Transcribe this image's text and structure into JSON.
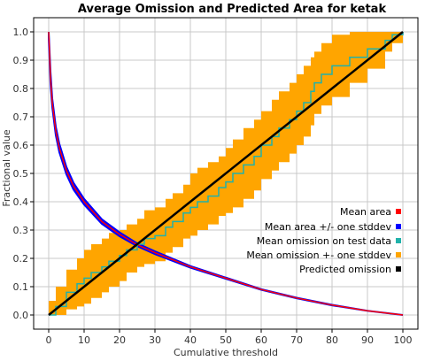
{
  "chart_data": {
    "type": "line",
    "title": "Average Omission and Predicted Area for ketak",
    "xlabel": "Cumulative threshold",
    "ylabel": "Fractional value",
    "xlim": [
      0,
      100
    ],
    "ylim": [
      0,
      1
    ],
    "x_ticks": [
      0,
      10,
      20,
      30,
      40,
      50,
      60,
      70,
      80,
      90,
      100
    ],
    "y_ticks": [
      0.0,
      0.1,
      0.2,
      0.3,
      0.4,
      0.5,
      0.6,
      0.7,
      0.8,
      0.9,
      1.0
    ],
    "x_tick_labels": [
      "0",
      "10",
      "20",
      "30",
      "40",
      "50",
      "60",
      "70",
      "80",
      "90",
      "100"
    ],
    "y_tick_labels": [
      "0.0",
      "0.1",
      "0.2",
      "0.3",
      "0.4",
      "0.5",
      "0.6",
      "0.7",
      "0.8",
      "0.9",
      "1.0"
    ],
    "grid": true,
    "legend_position": "bottom-right",
    "series": [
      {
        "name": "Mean area",
        "color": "#ff0000",
        "kind": "line",
        "x": [
          0,
          0.5,
          1,
          2,
          3,
          5,
          7,
          10,
          15,
          20,
          25,
          30,
          40,
          50,
          60,
          70,
          80,
          90,
          100
        ],
        "values": [
          1.0,
          0.84,
          0.75,
          0.65,
          0.59,
          0.51,
          0.455,
          0.4,
          0.33,
          0.285,
          0.248,
          0.22,
          0.17,
          0.13,
          0.09,
          0.06,
          0.035,
          0.015,
          0.0
        ]
      },
      {
        "name": "Mean area +/- one stddev",
        "color": "#0000ff",
        "kind": "band",
        "x": [
          0,
          0.5,
          1,
          2,
          3,
          5,
          7,
          10,
          15,
          20,
          25,
          30,
          40,
          50,
          60,
          70,
          80,
          90,
          100
        ],
        "lower": [
          0.98,
          0.82,
          0.735,
          0.635,
          0.575,
          0.497,
          0.443,
          0.39,
          0.322,
          0.278,
          0.243,
          0.215,
          0.167,
          0.128,
          0.089,
          0.059,
          0.034,
          0.015,
          0.0
        ],
        "upper": [
          1.0,
          0.86,
          0.765,
          0.665,
          0.605,
          0.523,
          0.467,
          0.41,
          0.338,
          0.292,
          0.253,
          0.225,
          0.173,
          0.132,
          0.091,
          0.061,
          0.036,
          0.015,
          0.0
        ]
      },
      {
        "name": "Mean omission on test data",
        "color": "#20b2aa",
        "kind": "line",
        "x": [
          0,
          2,
          5,
          8,
          10,
          12,
          15,
          17,
          20,
          22,
          25,
          27,
          30,
          33,
          35,
          38,
          40,
          42,
          45,
          48,
          50,
          52,
          55,
          58,
          60,
          63,
          65,
          68,
          70,
          72,
          74,
          75,
          77,
          80,
          85,
          90,
          95,
          97,
          100
        ],
        "values": [
          0.0,
          0.03,
          0.08,
          0.11,
          0.13,
          0.15,
          0.17,
          0.19,
          0.21,
          0.23,
          0.25,
          0.27,
          0.28,
          0.31,
          0.33,
          0.36,
          0.38,
          0.4,
          0.42,
          0.45,
          0.47,
          0.5,
          0.53,
          0.56,
          0.6,
          0.63,
          0.66,
          0.69,
          0.72,
          0.75,
          0.79,
          0.82,
          0.85,
          0.88,
          0.91,
          0.94,
          0.97,
          0.99,
          1.0
        ]
      },
      {
        "name": "Mean omission +- one stddev",
        "color": "#ffa500",
        "kind": "band",
        "x": [
          0,
          2,
          5,
          8,
          10,
          12,
          15,
          17,
          20,
          22,
          25,
          27,
          30,
          33,
          35,
          38,
          40,
          42,
          45,
          48,
          50,
          52,
          55,
          58,
          60,
          63,
          65,
          68,
          70,
          72,
          74,
          75,
          77,
          80,
          85,
          90,
          95,
          97,
          100
        ],
        "lower": [
          0.0,
          0.0,
          0.02,
          0.03,
          0.04,
          0.06,
          0.08,
          0.1,
          0.12,
          0.15,
          0.17,
          0.18,
          0.19,
          0.22,
          0.24,
          0.27,
          0.28,
          0.3,
          0.32,
          0.35,
          0.36,
          0.38,
          0.41,
          0.44,
          0.48,
          0.51,
          0.54,
          0.57,
          0.6,
          0.63,
          0.67,
          0.71,
          0.74,
          0.77,
          0.82,
          0.87,
          0.93,
          0.96,
          1.0
        ],
        "upper": [
          0.05,
          0.1,
          0.16,
          0.2,
          0.23,
          0.25,
          0.27,
          0.29,
          0.3,
          0.32,
          0.34,
          0.37,
          0.38,
          0.41,
          0.43,
          0.46,
          0.5,
          0.52,
          0.54,
          0.56,
          0.59,
          0.62,
          0.66,
          0.69,
          0.72,
          0.76,
          0.79,
          0.82,
          0.85,
          0.88,
          0.91,
          0.93,
          0.96,
          0.99,
          1.0,
          1.0,
          1.0,
          1.0,
          1.0
        ]
      },
      {
        "name": "Predicted omission",
        "color": "#000000",
        "kind": "line",
        "x": [
          0,
          100
        ],
        "values": [
          0.0,
          1.0
        ]
      }
    ],
    "legend_order": [
      0,
      1,
      2,
      3,
      4
    ]
  }
}
